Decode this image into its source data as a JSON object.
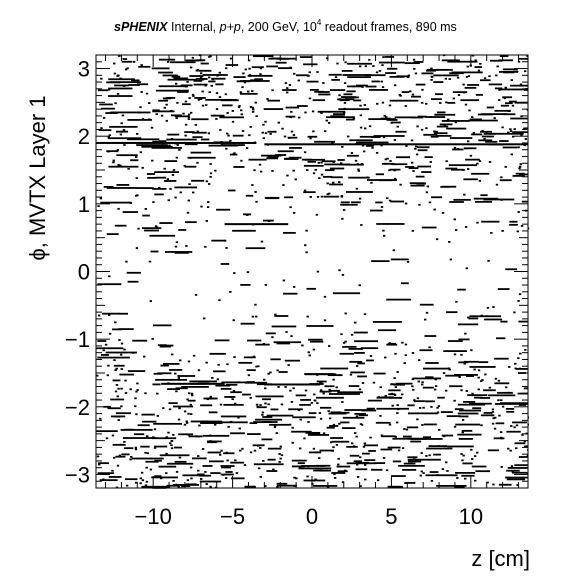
{
  "header": {
    "experiment": "sPHENIX",
    "status": "Internal,",
    "system": "p+p",
    "energy": ", 200 GeV, 10",
    "exponent": "4",
    "rest": " readout frames, 890 ms"
  },
  "chart_data": {
    "type": "scatter",
    "title": "sPHENIX Internal, p+p, 200 GeV, 10^4 readout frames, 890 ms",
    "xlabel": "z [cm]",
    "ylabel": "ϕ, MVTX Layer 1",
    "xlim": [
      -13.6,
      13.6
    ],
    "ylim": [
      -3.2,
      3.2
    ],
    "xticks": [
      {
        "value": -10,
        "label": "−10"
      },
      {
        "value": -5,
        "label": "−5"
      },
      {
        "value": 0,
        "label": "0"
      },
      {
        "value": 5,
        "label": "5"
      },
      {
        "value": 10,
        "label": "10"
      }
    ],
    "yticks": [
      {
        "value": -3,
        "label": "−3"
      },
      {
        "value": -2,
        "label": "−2"
      },
      {
        "value": -1,
        "label": "−1"
      },
      {
        "value": 0,
        "label": "0"
      },
      {
        "value": 1,
        "label": "1"
      },
      {
        "value": 2,
        "label": "2"
      },
      {
        "value": 3,
        "label": "3"
      }
    ],
    "grid": false,
    "legend": "none",
    "marker_color": "#000000",
    "description_of_density": "dense hits for phi in [1.5, 3.2] and [-3.2, -1.5], sparse near phi 0",
    "long_streaks": [
      {
        "z_start": -13.6,
        "z_end": -3.5,
        "phi": 1.9
      },
      {
        "z_start": -3.0,
        "z_end": 13.6,
        "phi": 1.88
      },
      {
        "z_start": -5.5,
        "z_end": -1.5,
        "phi": 0.7
      },
      {
        "z_start": -9.5,
        "z_end": -5.5,
        "phi": -1.66
      },
      {
        "z_start": -3.0,
        "z_end": 0.5,
        "phi": -1.67
      }
    ]
  }
}
